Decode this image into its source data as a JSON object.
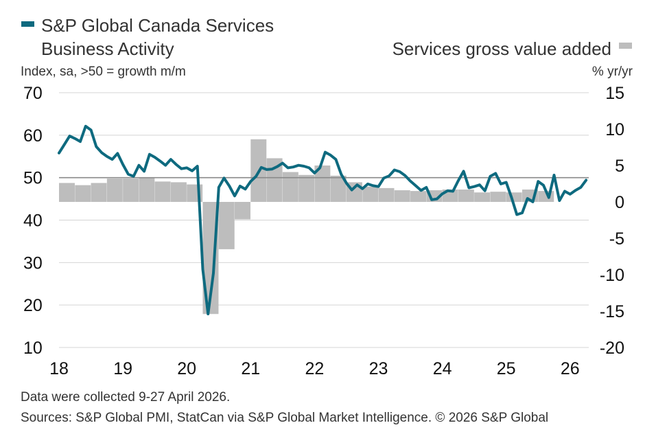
{
  "legend": {
    "line_title_1": "S&P Global Canada Services",
    "line_title_2": "Business Activity",
    "bar_title": "Services gross value added",
    "line_color": "#0e6a7f",
    "bar_color": "#bdbdbd"
  },
  "left_axis_note": "Index, sa, >50 = growth m/m",
  "right_axis_note": "% yr/yr",
  "footer": {
    "note": "Data were collected 9-27 April 2026.",
    "sources": "Sources: S&P Global PMI, StatCan via S&P Global Market Intelligence. © 2026 S&P Global"
  },
  "chart_data": {
    "type": "line",
    "x_tick_labels": [
      "18",
      "19",
      "20",
      "21",
      "22",
      "23",
      "24",
      "25",
      "26"
    ],
    "y_left_ticks": [
      "70",
      "60",
      "50",
      "40",
      "30",
      "20",
      "10"
    ],
    "y_left_range": [
      10,
      70
    ],
    "y_right_ticks": [
      "15",
      "10",
      "5",
      "0",
      "-5",
      "-10",
      "-15",
      "-20"
    ],
    "y_right_range": [
      -20,
      15
    ],
    "grid": true,
    "reference_line_left": 50,
    "series": [
      {
        "name": "S&P Global Canada Services Business Activity",
        "axis": "left",
        "type": "line",
        "start": "2018-01",
        "values": [
          55.8,
          57.8,
          59.8,
          59.2,
          58.5,
          62.1,
          61.2,
          57.3,
          55.9,
          55.0,
          54.3,
          55.7,
          53.1,
          50.8,
          50.3,
          52.9,
          51.5,
          55.5,
          54.8,
          53.9,
          52.9,
          54.3,
          53.1,
          52.1,
          52.3,
          51.6,
          52.7,
          28.4,
          17.9,
          27.5,
          47.7,
          49.9,
          48.0,
          45.7,
          48.0,
          47.3,
          49.1,
          50.3,
          52.4,
          51.9,
          52.0,
          52.6,
          53.4,
          52.3,
          52.5,
          52.9,
          52.7,
          52.3,
          51.1,
          52.3,
          56.0,
          55.3,
          54.3,
          50.8,
          48.7,
          47.1,
          48.3,
          47.4,
          48.5,
          48.1,
          47.9,
          49.9,
          50.4,
          51.8,
          51.4,
          50.5,
          49.2,
          48.1,
          47.0,
          47.7,
          44.8,
          45.0,
          46.2,
          46.9,
          46.8,
          49.3,
          51.5,
          47.6,
          47.9,
          48.3,
          46.9,
          50.3,
          51.0,
          48.5,
          48.9,
          45.3,
          41.3,
          41.7,
          45.1,
          44.3,
          49.1,
          48.2,
          45.3,
          50.6,
          44.6,
          46.8,
          46.1,
          47.0,
          47.7,
          49.4
        ]
      },
      {
        "name": "Services gross value added",
        "axis": "right",
        "type": "bar",
        "start": "2018-01",
        "step_months": 3,
        "values": [
          2.6,
          2.3,
          2.6,
          3.2,
          3.2,
          3.3,
          2.8,
          2.7,
          2.4,
          -15.4,
          -6.5,
          -2.4,
          8.6,
          6.0,
          4.1,
          3.7,
          5.0,
          3.6,
          2.7,
          2.1,
          1.9,
          1.6,
          1.5,
          1.6,
          1.7,
          1.7,
          1.3,
          1.4,
          1.3,
          1.7,
          1.5
        ]
      }
    ]
  }
}
